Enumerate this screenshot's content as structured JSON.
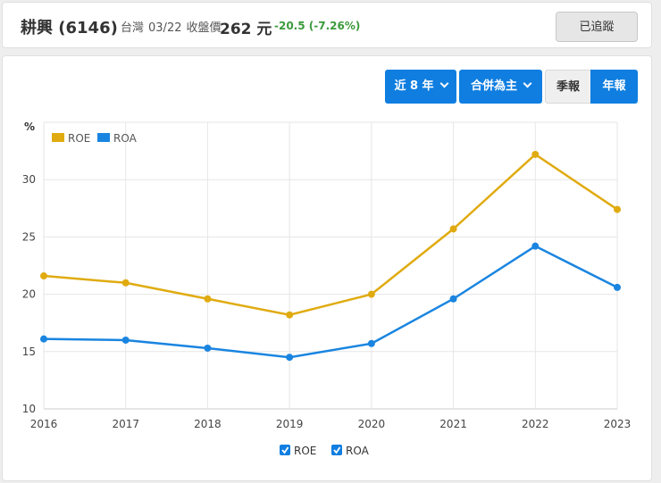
{
  "header": {
    "stock_name": "耕興 (6146)",
    "market": "台灣",
    "date": "03/22",
    "price_label": "收盤價",
    "price": "262 元",
    "change": "-20.5 (-7.26%)",
    "follow_label": "已追蹤"
  },
  "controls": {
    "period_label": "近 8 年",
    "consolidation_label": "合併為主",
    "quarterly_label": "季報",
    "annual_label": "年報"
  },
  "colors": {
    "roe": "#e0ab10",
    "roa": "#1a85e0",
    "accent": "#0f7ee0",
    "change": "#3b9a3b"
  },
  "chart_data": {
    "type": "line",
    "title": "",
    "xlabel": "",
    "ylabel": "%",
    "x": [
      "2016",
      "2017",
      "2018",
      "2019",
      "2020",
      "2021",
      "2022",
      "2023"
    ],
    "ylim": [
      10,
      35
    ],
    "yticks": [
      "10",
      "15",
      "20",
      "25",
      "30"
    ],
    "series": [
      {
        "name": "ROE",
        "values": [
          21.6,
          21.0,
          19.6,
          18.2,
          20.0,
          25.7,
          32.2,
          27.4
        ]
      },
      {
        "name": "ROA",
        "values": [
          16.1,
          16.0,
          15.3,
          14.5,
          15.7,
          19.6,
          24.2,
          20.6
        ]
      }
    ],
    "legend_top": [
      "ROE",
      "ROA"
    ],
    "legend_bottom": [
      "ROE",
      "ROA"
    ]
  }
}
